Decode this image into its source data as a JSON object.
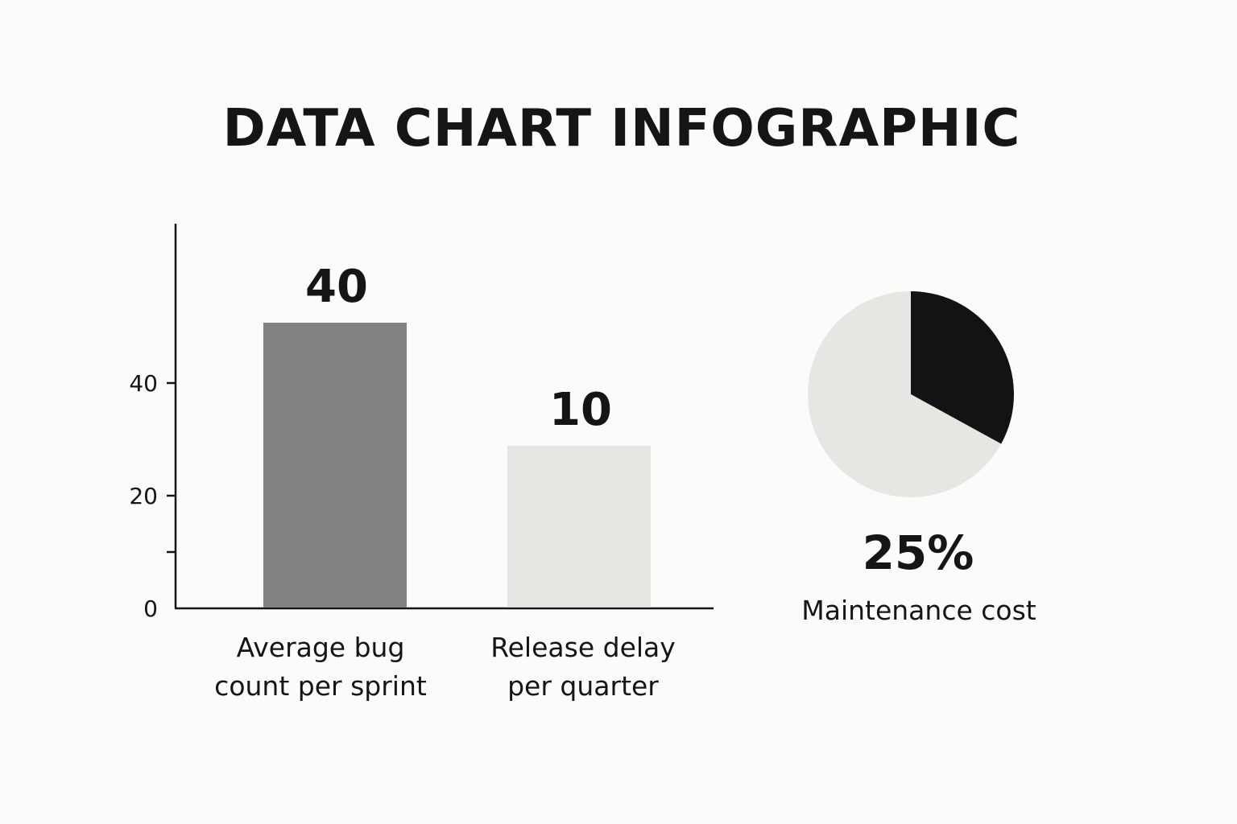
{
  "title": "DATA CHART INFOGRAPHIC",
  "colors": {
    "background": "#fbfbf9",
    "text": "#151515",
    "bar_primary": "#828282",
    "bar_secondary": "#e5e5e2",
    "pie_highlight": "#111314",
    "pie_rest": "#e6e6e3"
  },
  "chart_data": [
    {
      "type": "bar",
      "title": "",
      "xlabel": "",
      "ylabel": "",
      "categories": [
        [
          "Average bug",
          "count per sprint"
        ],
        [
          "Release delay",
          "per quarter"
        ]
      ],
      "values": [
        40,
        10
      ],
      "value_labels": [
        "40",
        "10"
      ],
      "y_ticks": [
        {
          "value": 0,
          "label": "0"
        },
        {
          "value": 10,
          "label": ""
        },
        {
          "value": 20,
          "label": "20"
        },
        {
          "value": 40,
          "label": "40"
        }
      ],
      "ylim": [
        0,
        50
      ],
      "grid": false,
      "legend": "none"
    },
    {
      "type": "pie",
      "title": "",
      "slices": [
        {
          "label": "Maintenance cost",
          "value": 25,
          "display": "25%",
          "color": "#111314"
        },
        {
          "label": "",
          "value": 75,
          "color": "#e6e6e3"
        }
      ],
      "value_label": "25%",
      "caption": "Maintenance cost",
      "legend": "none"
    }
  ]
}
